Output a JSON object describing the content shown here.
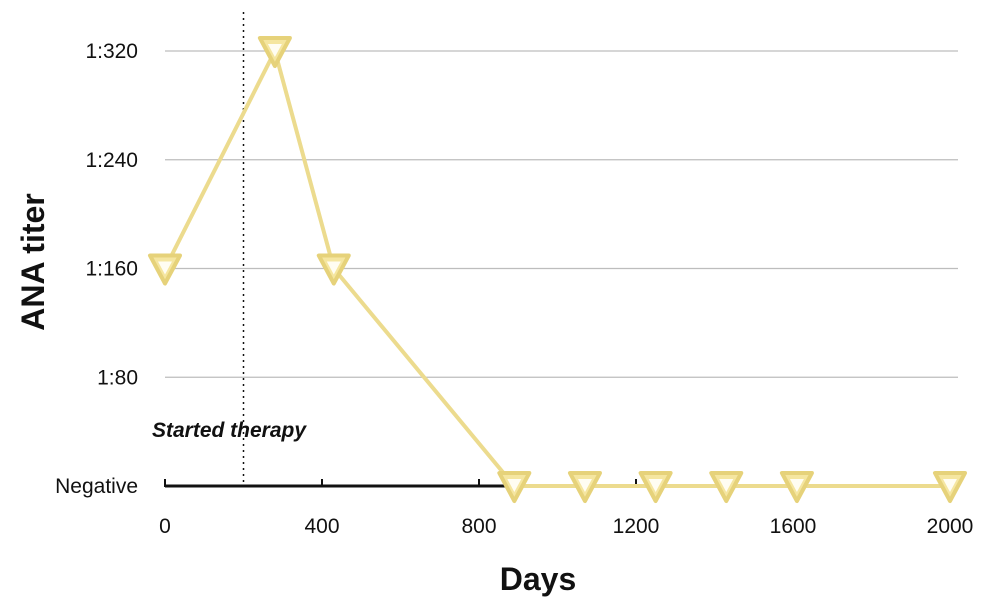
{
  "chart_data": {
    "type": "line",
    "title": "",
    "xlabel": "Days",
    "ylabel": "ANA titer",
    "x_ticks": [
      0,
      400,
      800,
      1200,
      1600,
      2000
    ],
    "x_tick_labels": [
      "0",
      "400",
      "800",
      "1200",
      "1600",
      "2000"
    ],
    "xlim": [
      0,
      2000
    ],
    "y_levels": [
      0,
      80,
      160,
      240,
      320
    ],
    "y_tick_labels": [
      "Negative",
      "1:80",
      "1:160",
      "1:240",
      "1:320"
    ],
    "ylim": [
      0,
      320
    ],
    "grid": true,
    "series": [
      {
        "marker": "down-triangle",
        "color": "#f5e6a0",
        "marker_edge_color": "#e6d27a",
        "line_color": "#ecdb8e",
        "x": [
          0,
          280,
          430,
          890,
          1070,
          1250,
          1430,
          1610,
          2000
        ],
        "y": [
          160,
          320,
          160,
          0,
          0,
          0,
          0,
          0,
          0
        ]
      }
    ],
    "annotations": [
      {
        "text": "Started therapy",
        "x": 200,
        "style": "dotted-vertical-line"
      }
    ]
  }
}
